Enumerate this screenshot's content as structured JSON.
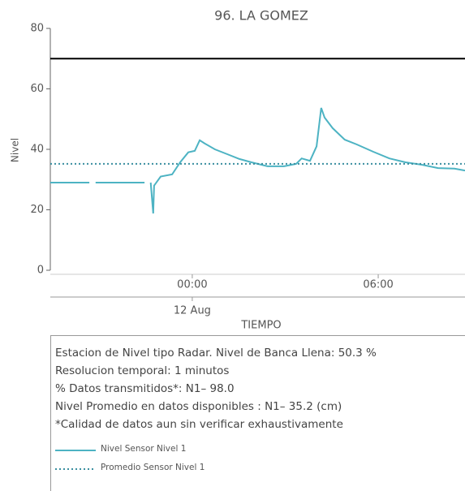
{
  "chart_data": {
    "type": "line",
    "title": "96. LA GOMEZ",
    "ylabel": "Nivel",
    "xlabel": "TIEMPO",
    "ylim": [
      0,
      80
    ],
    "yticks": [
      0,
      20,
      40,
      60,
      80
    ],
    "xlim": [
      -4.58,
      8.8
    ],
    "xticks": [
      {
        "value": 0,
        "label": "00:00"
      },
      {
        "value": 6,
        "label": "06:00"
      }
    ],
    "date_ticks": [
      {
        "value": 0,
        "label": "12 Aug"
      }
    ],
    "threshold": {
      "value": 70,
      "color": "#000000"
    },
    "series": [
      {
        "name": "Nivel Sensor Nivel 1",
        "color": "#4db3c3",
        "x": [
          -4.58,
          -3.32,
          -3.22,
          -3.12,
          -1.54,
          -1.44,
          -1.34,
          -1.26,
          -1.23,
          -1.02,
          -0.65,
          -0.39,
          -0.13,
          0.08,
          0.24,
          0.39,
          0.73,
          1.13,
          1.52,
          1.91,
          2.43,
          2.96,
          3.35,
          3.53,
          3.8,
          4.01,
          4.16,
          4.27,
          4.53,
          4.92,
          5.31,
          5.84,
          6.36,
          6.88,
          7.41,
          7.93,
          8.46,
          8.8
        ],
        "values": [
          29,
          29,
          null,
          29,
          29,
          null,
          29,
          18.8,
          28,
          31,
          31.7,
          35.7,
          39,
          39.5,
          43,
          42,
          40,
          38.4,
          36.8,
          35.7,
          34.4,
          34.4,
          35.2,
          37,
          36.2,
          41,
          53.7,
          50.5,
          47,
          43.2,
          41.6,
          39.2,
          37,
          35.7,
          34.9,
          33.8,
          33.6,
          33
        ]
      },
      {
        "name": "Promedio Sensor Nivel 1",
        "color": "#3a8fa0",
        "dash": "dotted",
        "constant": 35.2
      }
    ],
    "notes": [
      "Estacion de Nivel tipo Radar. Nivel de Banca Llena: 50.3 %",
      "Resolucion temporal: 1 minutos",
      "% Datos transmitidos*: N1– 98.0",
      "Nivel Promedio en datos disponibles : N1– 35.2 (cm)",
      "*Calidad de datos aun sin verificar exhaustivamente"
    ]
  }
}
